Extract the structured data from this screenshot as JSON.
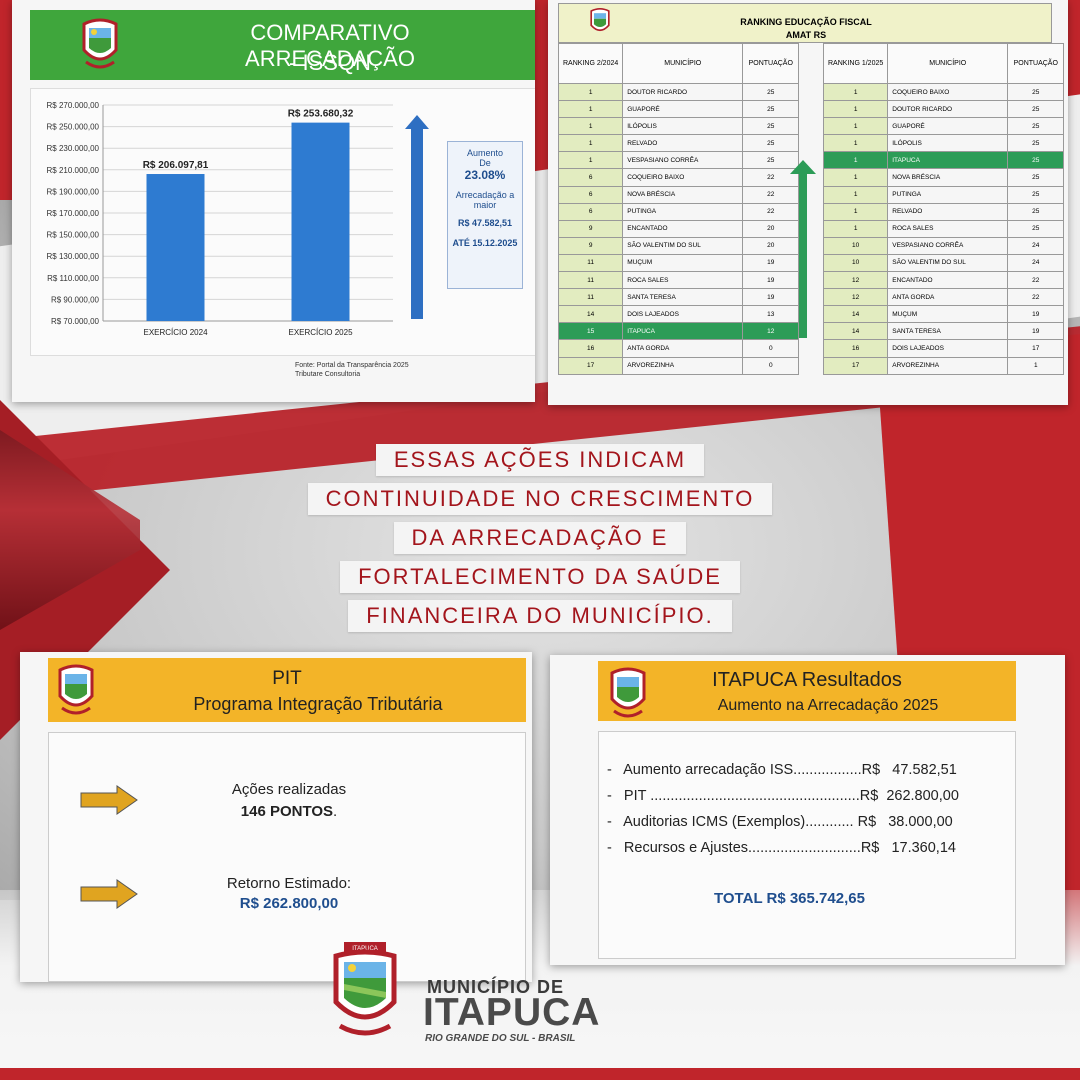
{
  "panel_issqn": {
    "title_line1": "COMPARATIVO ARRECADAÇÃO",
    "title_line2": "- ISSQN",
    "source_line1": "Fonte: Portal da Transparência 2025",
    "source_line2": "Tributare Consultoria",
    "side_box": {
      "aumento": "Aumento",
      "de": "De",
      "percent": "23.08%",
      "arrec_line1": "Arrecadação a",
      "arrec_line2": "maior",
      "value": "R$ 47.582,51",
      "date": "ATÉ 15.12.2025"
    },
    "colors": {
      "header_bg": "#3fa63c",
      "bar": "#2e7bd1",
      "arrow": "#2e6fc2"
    }
  },
  "chart_data": {
    "type": "bar",
    "categories": [
      "EXERCÍCIO 2024",
      "EXERCÍCIO 2025"
    ],
    "values": [
      206097.81,
      253680.32
    ],
    "data_labels": [
      "R$ 206.097,81",
      "R$ 253.680,32"
    ],
    "ylim": [
      70000,
      270000
    ],
    "yticks": [
      "R$ 70.000,00",
      "R$ 90.000,00",
      "R$ 110.000,00",
      "R$ 130.000,00",
      "R$ 150.000,00",
      "R$ 170.000,00",
      "R$ 190.000,00",
      "R$ 210.000,00",
      "R$ 230.000,00",
      "R$ 250.000,00",
      "R$ 270.000,00"
    ],
    "ytick_values": [
      70000,
      90000,
      110000,
      130000,
      150000,
      170000,
      190000,
      210000,
      230000,
      250000,
      270000
    ],
    "title": "",
    "xlabel": "",
    "ylabel": "",
    "grid": true
  },
  "panel_ranking": {
    "title_line1": "RANKING EDUCAÇÃO FISCAL",
    "title_line2": "AMAT RS",
    "left": {
      "headers": [
        "RANKING 2/2024",
        "MUNICÍPIO",
        "PONTUAÇÃO"
      ],
      "rows": [
        [
          "1",
          "DOUTOR RICARDO",
          "25"
        ],
        [
          "1",
          "GUAPORÉ",
          "25"
        ],
        [
          "1",
          "ILÓPOLIS",
          "25"
        ],
        [
          "1",
          "RELVADO",
          "25"
        ],
        [
          "1",
          "VESPASIANO CORRÊA",
          "25"
        ],
        [
          "6",
          "COQUEIRO BAIXO",
          "22"
        ],
        [
          "6",
          "NOVA BRÉSCIA",
          "22"
        ],
        [
          "6",
          "PUTINGA",
          "22"
        ],
        [
          "9",
          "ENCANTADO",
          "20"
        ],
        [
          "9",
          "SÃO VALENTIM DO SUL",
          "20"
        ],
        [
          "11",
          "MUÇUM",
          "19"
        ],
        [
          "11",
          "ROCA SALES",
          "19"
        ],
        [
          "11",
          "SANTA TERESA",
          "19"
        ],
        [
          "14",
          "DOIS LAJEADOS",
          "13"
        ],
        [
          "15",
          "ITAPUCA",
          "12"
        ],
        [
          "16",
          "ANTA GORDA",
          "0"
        ],
        [
          "17",
          "ARVOREZINHA",
          "0"
        ]
      ],
      "highlight_index": 14
    },
    "right": {
      "headers": [
        "RANKING 1/2025",
        "MUNICÍPIO",
        "PONTUAÇÃO"
      ],
      "rows": [
        [
          "1",
          "COQUEIRO BAIXO",
          "25"
        ],
        [
          "1",
          "DOUTOR RICARDO",
          "25"
        ],
        [
          "1",
          "GUAPORÉ",
          "25"
        ],
        [
          "1",
          "ILÓPOLIS",
          "25"
        ],
        [
          "1",
          "ITAPUCA",
          "25"
        ],
        [
          "1",
          "NOVA BRÉSCIA",
          "25"
        ],
        [
          "1",
          "PUTINGA",
          "25"
        ],
        [
          "1",
          "RELVADO",
          "25"
        ],
        [
          "1",
          "ROCA SALES",
          "25"
        ],
        [
          "10",
          "VESPASIANO CORRÊA",
          "24"
        ],
        [
          "10",
          "SÃO VALENTIM DO SUL",
          "24"
        ],
        [
          "12",
          "ENCANTADO",
          "22"
        ],
        [
          "12",
          "ANTA GORDA",
          "22"
        ],
        [
          "14",
          "MUÇUM",
          "19"
        ],
        [
          "14",
          "SANTA TERESA",
          "19"
        ],
        [
          "16",
          "DOIS LAJEADOS",
          "17"
        ],
        [
          "17",
          "ARVOREZINHA",
          "1"
        ]
      ],
      "highlight_index": 4
    },
    "colors": {
      "highlight": "#2c9c57",
      "rank_cell": "#e2ecc0",
      "arrow": "#2c9c57"
    }
  },
  "center_text": {
    "lines": [
      "ESSAS AÇÕES INDICAM",
      "CONTINUIDADE NO CRESCIMENTO",
      "DA ARRECADAÇÃO E",
      "FORTALECIMENTO DA SAÚDE",
      "FINANCEIRA DO MUNICÍPIO."
    ],
    "color": "#a3151c"
  },
  "panel_pit": {
    "title_line1": "PIT",
    "title_line2": "Programa Integração Tributária",
    "actions_label": "Ações realizadas",
    "actions_value": "146 PONTOS",
    "actions_dot": ".",
    "retorno_label": "Retorno Estimado:",
    "retorno_value": "R$ 262.800,00",
    "colors": {
      "header_bg": "#f3b428",
      "arrow": "#e0a420"
    }
  },
  "panel_results": {
    "title_line1": "ITAPUCA Resultados",
    "title_line2": "Aumento na Arrecadação 2025",
    "lines": [
      "-   Aumento arrecadação ISS.................R$   47.582,51",
      "-   PIT ....................................................R$  262.800,00",
      "-   Auditorias ICMS (Exemplos)............ R$   38.000,00",
      "-   Recursos e Ajustes............................R$   17.360,14"
    ],
    "total": "TOTAL    R$ 365.742,65"
  },
  "footer_logo": {
    "line1": "MUNICÍPIO DE",
    "line2": "ITAPUCA",
    "line3": "RIO GRANDE DO SUL - BRASIL",
    "seal_text": "ITAPUCA"
  }
}
